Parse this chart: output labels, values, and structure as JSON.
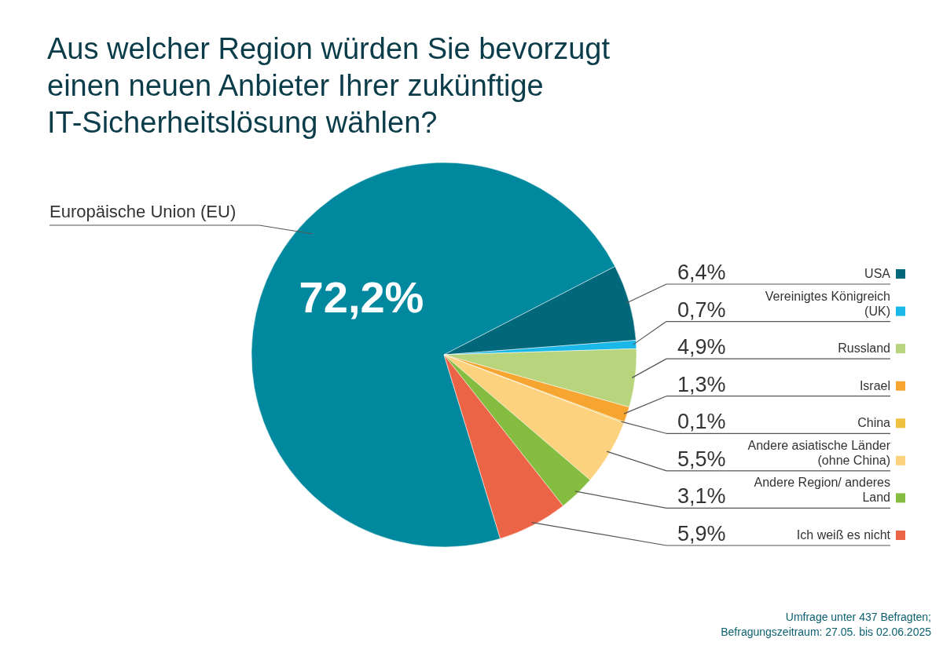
{
  "chart_data": {
    "type": "pie",
    "title": "Aus welcher Region würden Sie bevorzugt einen neuen Anbieter Ihrer zukünftige IT-Sicherheitslösung wählen?",
    "categories": [
      "Europäische Union (EU)",
      "USA",
      "Vereinigtes Königreich (UK)",
      "Russland",
      "Israel",
      "China",
      "Andere asiatische Länder (ohne China)",
      "Andere Region/ anderes Land",
      "Ich weiß es nicht"
    ],
    "values": [
      72.2,
      6.4,
      0.7,
      4.9,
      1.3,
      0.1,
      5.5,
      3.1,
      5.9
    ],
    "colors": [
      "#00899e",
      "#00687a",
      "#1ab8e8",
      "#b8d47c",
      "#f5a530",
      "#f0c040",
      "#fdd27e",
      "#84bd3f",
      "#ec6446"
    ],
    "value_labels": [
      "72,2%",
      "6,4%",
      "0,7%",
      "4,9%",
      "1,3%",
      "0,1%",
      "5,5%",
      "3,1%",
      "5,9%"
    ],
    "legend": "right",
    "annotations": [
      "Umfrage unter 437 Befragten; Befragungszeitraum: 27.05. bis 02.06.2025"
    ]
  }
}
